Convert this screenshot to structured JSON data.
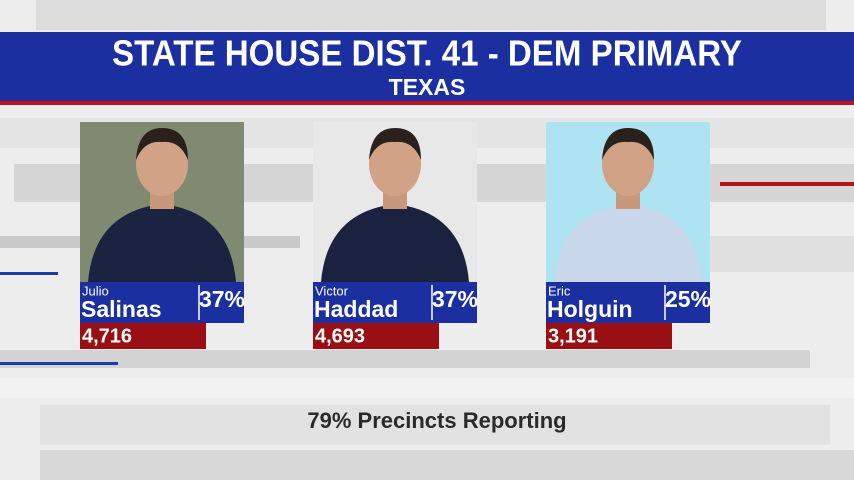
{
  "header": {
    "title": "STATE HOUSE DIST. 41 - DEM PRIMARY",
    "subtitle": "TEXAS"
  },
  "candidates": [
    {
      "first_name": "Julio",
      "last_name": "Salinas",
      "percent": "37%",
      "votes": "4,716"
    },
    {
      "first_name": "Victor",
      "last_name": "Haddad",
      "percent": "37%",
      "votes": "4,693"
    },
    {
      "first_name": "Eric",
      "last_name": "Holguin",
      "percent": "25%",
      "votes": "3,191"
    }
  ],
  "footer": "79% Precincts Reporting"
}
